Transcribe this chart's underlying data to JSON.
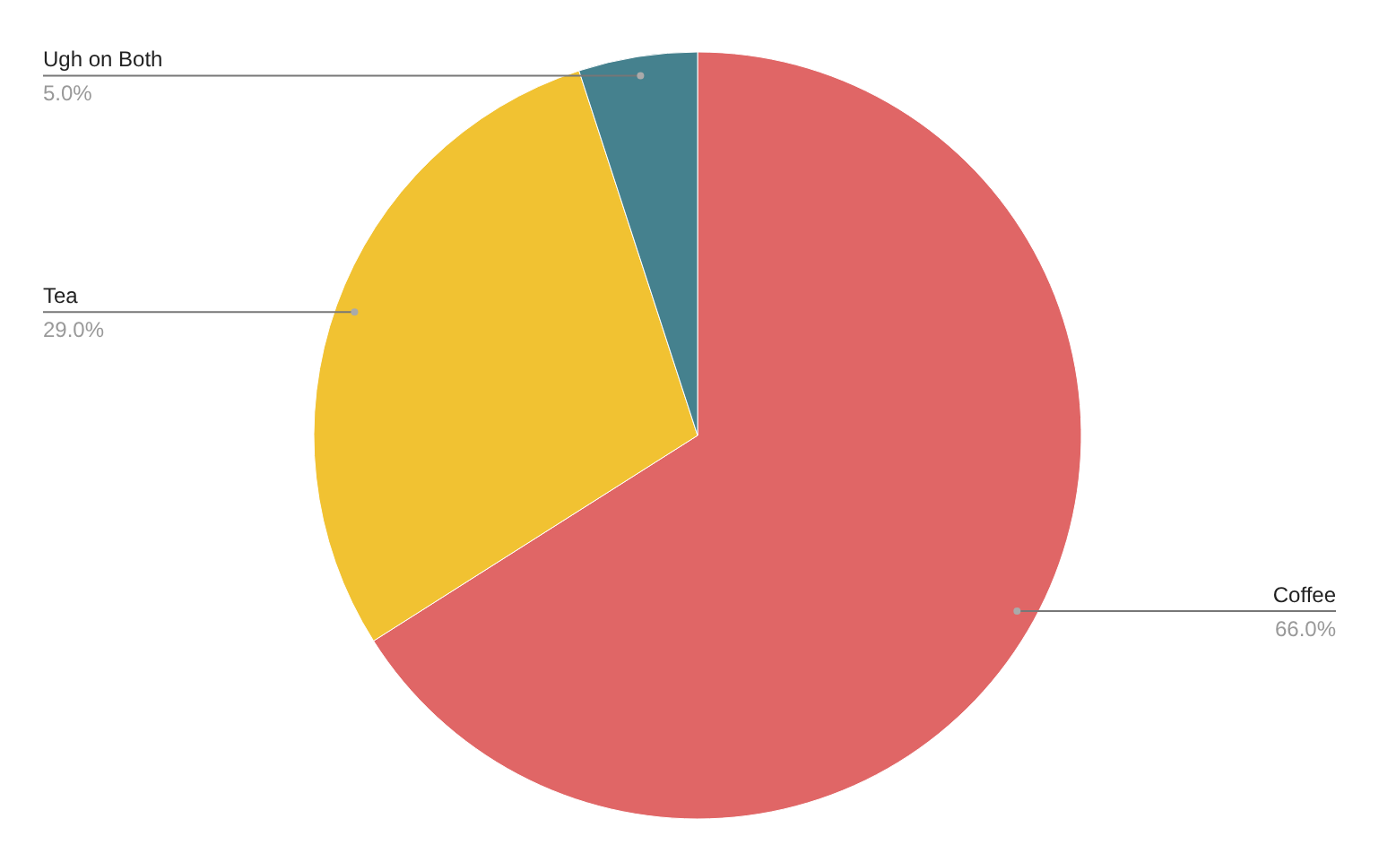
{
  "chart_data": {
    "type": "pie",
    "categories": [
      "Coffee",
      "Tea",
      "Ugh on Both"
    ],
    "values": [
      66,
      29,
      5
    ],
    "colors": [
      "#e06666",
      "#f1c232",
      "#45818e"
    ],
    "value_labels": [
      "66.0%",
      "29.0%",
      "5.0%"
    ]
  }
}
